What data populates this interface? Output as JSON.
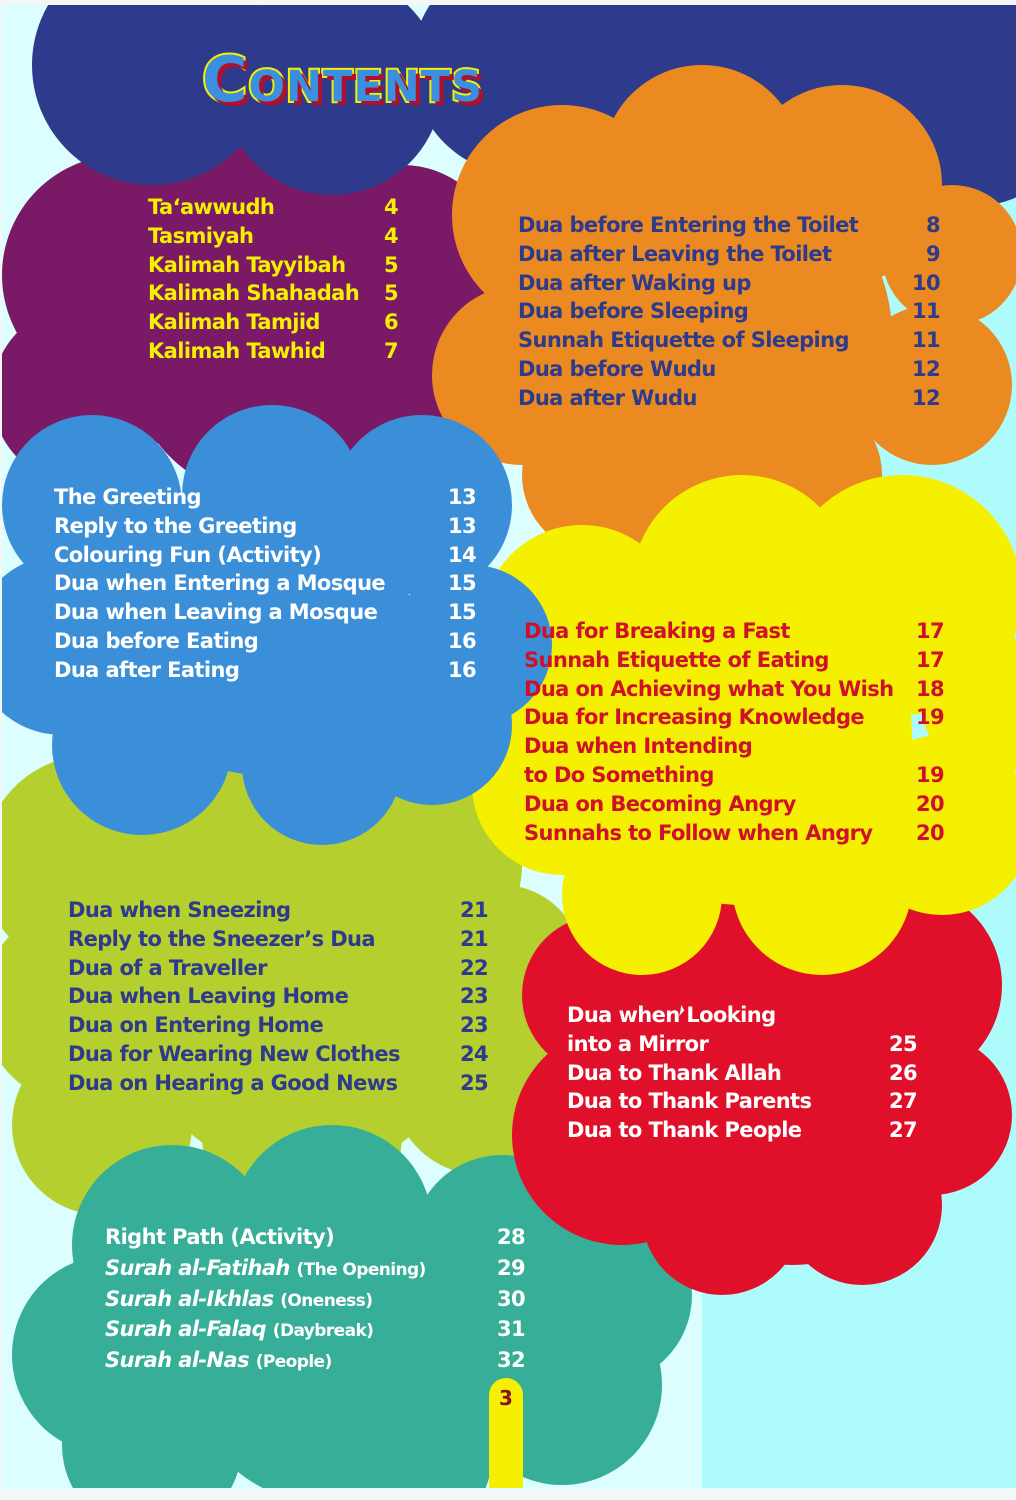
{
  "title": "Contents",
  "page_number": "3",
  "colors": {
    "navy": "#2e3a8c",
    "purple": "#7a1a66",
    "orange": "#ec8a22",
    "blue": "#3a8fd8",
    "yellow": "#f5ef00",
    "green": "#b5cf2e",
    "red": "#e0102a",
    "teal": "#36ae98"
  },
  "sections": [
    {
      "items": [
        {
          "title": "Ta‘awwudh",
          "page": "4"
        },
        {
          "title": "Tasmiyah",
          "page": "4"
        },
        {
          "title": "Kalimah Tayyibah",
          "page": "5"
        },
        {
          "title": "Kalimah Shahadah",
          "page": "5"
        },
        {
          "title": "Kalimah Tamjid",
          "page": "6"
        },
        {
          "title": "Kalimah Tawhid",
          "page": "7"
        }
      ]
    },
    {
      "items": [
        {
          "title": "Dua before Entering the Toilet",
          "page": "8"
        },
        {
          "title": "Dua after Leaving the Toilet",
          "page": "9"
        },
        {
          "title": "Dua after Waking up",
          "page": "10"
        },
        {
          "title": "Dua before Sleeping",
          "page": "11"
        },
        {
          "title": "Sunnah Etiquette of Sleeping",
          "page": "11"
        },
        {
          "title": "Dua before Wudu",
          "page": "12"
        },
        {
          "title": "Dua after Wudu",
          "page": "12"
        }
      ]
    },
    {
      "items": [
        {
          "title": "The Greeting",
          "page": "13"
        },
        {
          "title": "Reply to the Greeting",
          "page": "13"
        },
        {
          "title": "Colouring Fun (Activity)",
          "page": "14"
        },
        {
          "title": "Dua when Entering a Mosque",
          "page": "15"
        },
        {
          "title": "Dua when Leaving a Mosque",
          "page": "15"
        },
        {
          "title": "Dua before Eating",
          "page": "16"
        },
        {
          "title": "Dua after Eating",
          "page": "16"
        }
      ]
    },
    {
      "items": [
        {
          "title": "Dua for Breaking a Fast",
          "page": "17"
        },
        {
          "title": "Sunnah Etiquette of Eating",
          "page": "17"
        },
        {
          "title": "Dua on Achieving what You Wish",
          "page": "18"
        },
        {
          "title": "Dua for Increasing Knowledge",
          "page": "19"
        },
        {
          "title": "Dua when Intending",
          "page": ""
        },
        {
          "title": "to Do Something",
          "page": "19"
        },
        {
          "title": "Dua on Becoming Angry",
          "page": "20"
        },
        {
          "title": "Sunnahs to Follow when Angry",
          "page": "20"
        }
      ]
    },
    {
      "items": [
        {
          "title": "Dua when Sneezing",
          "page": "21"
        },
        {
          "title": "Reply to the Sneezer’s Dua",
          "page": "21"
        },
        {
          "title": "Dua of a Traveller",
          "page": "22"
        },
        {
          "title": "Dua when Leaving Home",
          "page": "23"
        },
        {
          "title": "Dua on Entering Home",
          "page": "23"
        },
        {
          "title": "Dua for Wearing New Clothes",
          "page": "24"
        },
        {
          "title": "Dua on Hearing a Good News",
          "page": "25"
        }
      ]
    },
    {
      "items": [
        {
          "title": "Dua when Looking",
          "page": ""
        },
        {
          "title": "into a Mirror",
          "page": "25"
        },
        {
          "title": "Dua to Thank Allah",
          "page": "26"
        },
        {
          "title": "Dua to Thank Parents",
          "page": "27"
        },
        {
          "title": "Dua to Thank People",
          "page": "27"
        }
      ]
    },
    {
      "items": [
        {
          "title": "Right Path (Activity)",
          "sub": "",
          "page": "28"
        },
        {
          "title": "Surah al-Fatihah",
          "sub": "(The Opening)",
          "page": "29"
        },
        {
          "title": "Surah al-Ikhlas",
          "sub": "(Oneness)",
          "page": "30"
        },
        {
          "title": "Surah al-Falaq",
          "sub": "(Daybreak)",
          "page": "31"
        },
        {
          "title": "Surah  al-Nas",
          "sub": "(People)",
          "page": "32"
        }
      ]
    }
  ]
}
